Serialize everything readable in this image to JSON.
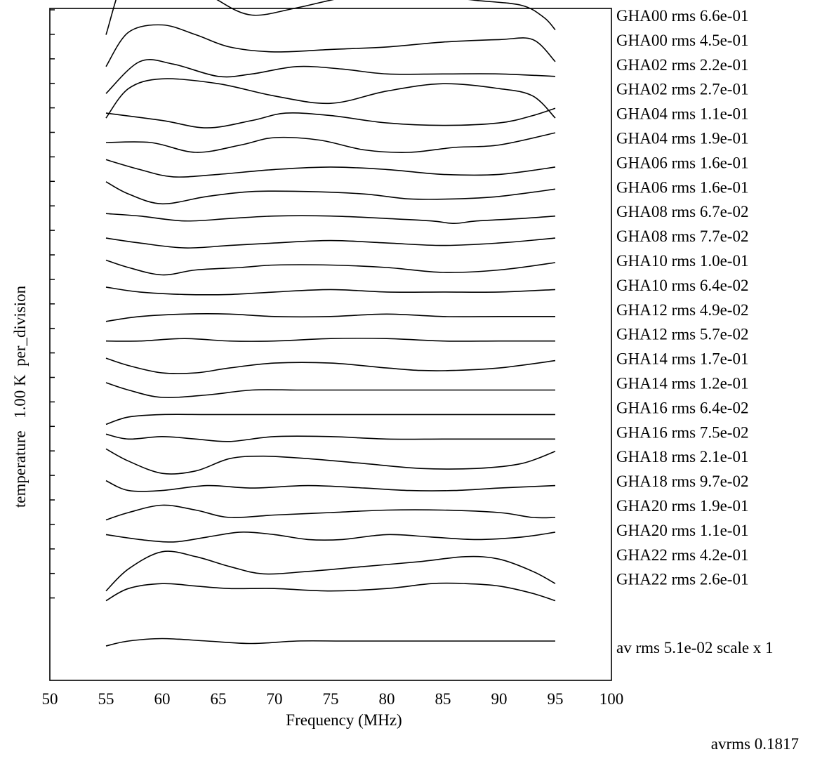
{
  "chart_data": {
    "type": "line",
    "xlabel": "Frequency (MHz)",
    "ylabel": "temperature   1.00 K  per_division",
    "xlim": [
      50,
      100
    ],
    "xticks": [
      "50",
      "55",
      "60",
      "65",
      "70",
      "75",
      "80",
      "85",
      "90",
      "95",
      "100"
    ],
    "legend_placement": "right",
    "footer": "avrms 0.1817",
    "x_range": [
      55,
      95
    ],
    "series": [
      {
        "name": "GHA00 rms 6.6e-01",
        "x": [
          55,
          57,
          60,
          63,
          65,
          68,
          72,
          76,
          80,
          84,
          88,
          92,
          94,
          95
        ],
        "y": [
          -0.5,
          2.2,
          2.8,
          1.6,
          0.9,
          0.3,
          0.6,
          1.0,
          1.2,
          1.1,
          0.9,
          0.7,
          0.2,
          -0.3
        ]
      },
      {
        "name": "GHA00 rms 4.5e-01",
        "x": [
          55,
          57,
          60,
          63,
          66,
          70,
          75,
          80,
          85,
          90,
          93,
          95
        ],
        "y": [
          -0.8,
          0.6,
          0.9,
          0.5,
          0.0,
          -0.2,
          -0.1,
          0.0,
          0.2,
          0.3,
          0.3,
          -0.6
        ]
      },
      {
        "name": "GHA02 rms 2.2e-01",
        "x": [
          55,
          58,
          61,
          65,
          68,
          72,
          76,
          80,
          85,
          90,
          95
        ],
        "y": [
          -0.9,
          0.4,
          0.3,
          -0.2,
          -0.1,
          0.2,
          0.1,
          -0.1,
          -0.1,
          -0.1,
          -0.2
        ]
      },
      {
        "name": "GHA02 rms 2.7e-01",
        "x": [
          55,
          57,
          60,
          65,
          70,
          75,
          80,
          85,
          90,
          93,
          95
        ],
        "y": [
          -0.9,
          0.3,
          0.7,
          0.5,
          0.0,
          -0.3,
          0.2,
          0.5,
          0.3,
          0.0,
          -0.9
        ]
      },
      {
        "name": "GHA04 rms 1.1e-01",
        "x": [
          55,
          60,
          64,
          68,
          71,
          75,
          80,
          85,
          90,
          93,
          95
        ],
        "y": [
          0.3,
          0.0,
          -0.3,
          0.0,
          0.3,
          0.2,
          -0.1,
          -0.2,
          -0.1,
          0.2,
          0.5
        ]
      },
      {
        "name": "GHA04 rms 1.9e-01",
        "x": [
          55,
          59,
          63,
          67,
          70,
          74,
          78,
          82,
          86,
          90,
          95
        ],
        "y": [
          0.1,
          0.1,
          -0.3,
          0.0,
          0.3,
          0.2,
          -0.2,
          -0.3,
          -0.1,
          0.0,
          0.5
        ]
      },
      {
        "name": "GHA06 rms 1.6e-01",
        "x": [
          55,
          58,
          61,
          65,
          70,
          75,
          80,
          85,
          90,
          95
        ],
        "y": [
          0.4,
          0.0,
          -0.3,
          -0.2,
          0.0,
          0.1,
          0.0,
          -0.2,
          -0.2,
          0.1
        ]
      },
      {
        "name": "GHA06 rms 1.6e-01",
        "x": [
          55,
          57,
          60,
          64,
          68,
          73,
          78,
          82,
          86,
          90,
          95
        ],
        "y": [
          0.5,
          0.0,
          -0.4,
          -0.1,
          0.1,
          0.1,
          0.0,
          -0.2,
          -0.2,
          -0.1,
          0.2
        ]
      },
      {
        "name": "GHA08 rms 6.7e-02",
        "x": [
          55,
          58,
          62,
          66,
          70,
          75,
          80,
          84,
          86,
          88,
          92,
          95
        ],
        "y": [
          0.2,
          0.1,
          -0.1,
          0.0,
          0.1,
          0.1,
          0.0,
          -0.1,
          -0.2,
          -0.1,
          0.0,
          0.1
        ]
      },
      {
        "name": "GHA08 rms 7.7e-02",
        "x": [
          55,
          58,
          62,
          66,
          70,
          75,
          80,
          85,
          90,
          95
        ],
        "y": [
          0.2,
          0.0,
          -0.2,
          -0.1,
          0.0,
          0.1,
          0.0,
          -0.1,
          0.0,
          0.2
        ]
      },
      {
        "name": "GHA10 rms 1.0e-01",
        "x": [
          55,
          57,
          60,
          63,
          67,
          70,
          75,
          80,
          85,
          90,
          95
        ],
        "y": [
          0.3,
          0.0,
          -0.3,
          -0.1,
          0.0,
          0.1,
          0.1,
          0.0,
          -0.2,
          -0.1,
          0.2
        ]
      },
      {
        "name": "GHA10 rms 6.4e-02",
        "x": [
          55,
          58,
          62,
          66,
          70,
          75,
          80,
          85,
          90,
          95
        ],
        "y": [
          0.2,
          0.0,
          -0.1,
          -0.1,
          0.0,
          0.1,
          0.0,
          0.0,
          0.0,
          0.1
        ]
      },
      {
        "name": "GHA12 rms 4.9e-02",
        "x": [
          55,
          58,
          62,
          66,
          70,
          75,
          80,
          85,
          90,
          95
        ],
        "y": [
          -0.2,
          0.0,
          0.1,
          0.1,
          0.0,
          0.0,
          0.1,
          0.0,
          0.0,
          0.0
        ]
      },
      {
        "name": "GHA12 rms 5.7e-02",
        "x": [
          55,
          58,
          62,
          66,
          70,
          75,
          80,
          85,
          90,
          95
        ],
        "y": [
          0.0,
          0.0,
          0.1,
          0.0,
          0.0,
          0.1,
          0.1,
          0.0,
          0.0,
          0.0
        ]
      },
      {
        "name": "GHA14 rms 1.7e-01",
        "x": [
          55,
          57,
          60,
          63,
          66,
          70,
          75,
          80,
          83,
          86,
          90,
          95
        ],
        "y": [
          0.3,
          0.0,
          -0.3,
          -0.3,
          -0.1,
          0.1,
          0.1,
          -0.1,
          -0.2,
          -0.2,
          -0.1,
          0.2
        ]
      },
      {
        "name": "GHA14 rms 1.2e-01",
        "x": [
          55,
          57,
          60,
          64,
          68,
          72,
          76,
          80,
          85,
          90,
          95
        ],
        "y": [
          0.3,
          0.0,
          -0.3,
          -0.2,
          0.0,
          0.0,
          0.0,
          0.0,
          0.0,
          0.0,
          0.0
        ]
      },
      {
        "name": "GHA16 rms 6.4e-02",
        "x": [
          55,
          57,
          60,
          64,
          68,
          72,
          76,
          80,
          85,
          90,
          95
        ],
        "y": [
          -0.4,
          -0.1,
          0.0,
          0.0,
          0.0,
          0.0,
          0.0,
          0.0,
          0.0,
          0.0,
          0.0
        ]
      },
      {
        "name": "GHA16 rms 7.5e-02",
        "x": [
          55,
          57,
          60,
          63,
          66,
          70,
          75,
          80,
          85,
          90,
          95
        ],
        "y": [
          0.2,
          0.0,
          0.1,
          0.0,
          -0.1,
          0.1,
          0.1,
          0.0,
          0.0,
          0.0,
          0.0
        ]
      },
      {
        "name": "GHA18 rms 2.1e-01",
        "x": [
          55,
          57,
          60,
          63,
          66,
          69,
          73,
          78,
          83,
          88,
          92,
          95
        ],
        "y": [
          0.6,
          0.1,
          -0.4,
          -0.3,
          0.2,
          0.3,
          0.2,
          0.0,
          -0.2,
          -0.2,
          0.0,
          0.5
        ]
      },
      {
        "name": "GHA18 rms 9.7e-02",
        "x": [
          55,
          57,
          60,
          64,
          68,
          73,
          78,
          82,
          86,
          90,
          95
        ],
        "y": [
          0.3,
          -0.1,
          -0.1,
          0.1,
          0.0,
          0.1,
          0.0,
          -0.1,
          -0.1,
          0.0,
          0.1
        ]
      },
      {
        "name": "GHA20 rms 1.9e-01",
        "x": [
          55,
          57,
          60,
          63,
          66,
          70,
          75,
          80,
          85,
          90,
          93,
          95
        ],
        "y": [
          -0.3,
          0.0,
          0.3,
          0.1,
          -0.2,
          -0.1,
          0.0,
          0.1,
          0.1,
          0.0,
          -0.2,
          -0.2
        ]
      },
      {
        "name": "GHA20 rms 1.1e-01",
        "x": [
          55,
          58,
          61,
          64,
          67,
          70,
          73,
          76,
          80,
          84,
          88,
          92,
          95
        ],
        "y": [
          0.1,
          -0.1,
          -0.2,
          0.0,
          0.2,
          0.1,
          -0.1,
          -0.1,
          0.1,
          0.0,
          -0.1,
          0.0,
          0.2
        ]
      },
      {
        "name": "GHA22 rms 4.2e-01",
        "x": [
          55,
          57,
          60,
          63,
          66,
          69,
          73,
          78,
          83,
          87,
          90,
          93,
          95
        ],
        "y": [
          -1.2,
          -0.3,
          0.4,
          0.2,
          -0.2,
          -0.5,
          -0.4,
          -0.2,
          0.0,
          0.2,
          0.1,
          -0.4,
          -0.9
        ]
      },
      {
        "name": "GHA22 rms 2.6e-01",
        "x": [
          55,
          57,
          60,
          63,
          66,
          70,
          75,
          80,
          84,
          87,
          90,
          93,
          95
        ],
        "y": [
          -0.6,
          -0.1,
          0.1,
          0.0,
          -0.1,
          -0.1,
          -0.2,
          -0.1,
          0.1,
          0.1,
          0.0,
          -0.3,
          -0.6
        ]
      },
      {
        "name": "av  rms 5.1e-02 scale x 1",
        "x": [
          55,
          57,
          60,
          64,
          68,
          72,
          76,
          80,
          85,
          90,
          95
        ],
        "y": [
          -0.2,
          0.0,
          0.1,
          0.0,
          -0.1,
          0.0,
          0.0,
          0.0,
          0.0,
          0.0,
          0.0
        ]
      }
    ]
  }
}
